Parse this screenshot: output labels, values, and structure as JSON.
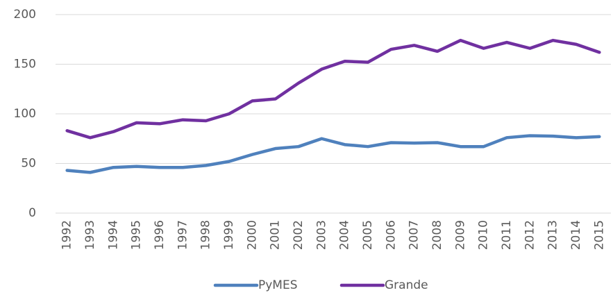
{
  "chart_data": {
    "type": "line",
    "categories": [
      "1992",
      "1993",
      "1994",
      "1995",
      "1996",
      "1997",
      "1998",
      "1999",
      "2000",
      "2001",
      "2002",
      "2003",
      "2004",
      "2005",
      "2006",
      "2007",
      "2008",
      "2009",
      "2010",
      "2011",
      "2012",
      "2013",
      "2014",
      "2015"
    ],
    "series": [
      {
        "name": "PyMES",
        "color": "#4f81bd",
        "values": [
          43,
          41,
          46,
          47,
          46,
          46,
          48,
          52,
          59,
          65,
          67,
          75,
          69,
          67,
          71,
          70.5,
          71,
          67,
          67,
          76,
          78,
          77.5,
          76,
          77
        ]
      },
      {
        "name": "Grande",
        "color": "#7030a0",
        "values": [
          83,
          76,
          82,
          91,
          90,
          94,
          93,
          100,
          113,
          115,
          131,
          145,
          153,
          152,
          165,
          169,
          163,
          174,
          166,
          172,
          166,
          174,
          170,
          162
        ]
      }
    ],
    "ylim": [
      0,
      200
    ],
    "yticks": [
      0,
      50,
      100,
      150,
      200
    ],
    "grid": true,
    "legend": "bottom"
  }
}
